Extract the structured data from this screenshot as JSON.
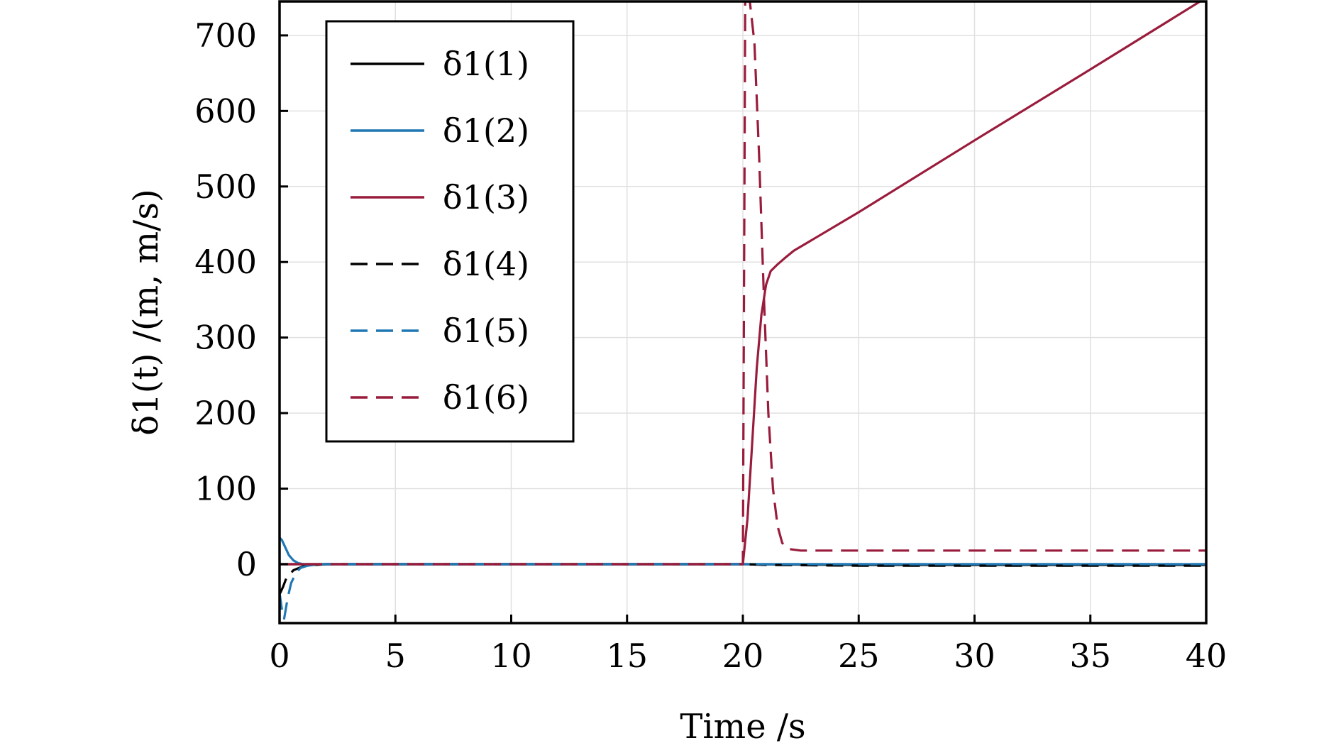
{
  "chart_data": {
    "type": "line",
    "xlabel": "Time /s",
    "ylabel": "δ1(t) /(m, m/s)",
    "xlim": [
      0,
      40
    ],
    "ylim": [
      -78,
      745
    ],
    "xticks": [
      0,
      5,
      10,
      15,
      20,
      25,
      30,
      35,
      40
    ],
    "yticks": [
      0,
      100,
      200,
      300,
      400,
      500,
      600,
      700
    ],
    "grid": true,
    "legend_position": "top-left",
    "series": [
      {
        "name": "δ1(1)",
        "color": "#000000",
        "dash": "solid",
        "x": [
          0,
          0.2,
          0.5,
          1,
          2,
          10,
          20,
          25,
          30,
          35,
          40
        ],
        "y": [
          0,
          0,
          0,
          0,
          0,
          0,
          0,
          -1,
          -1,
          -1,
          -1
        ]
      },
      {
        "name": "δ1(2)",
        "color": "#1f77b4",
        "dash": "solid",
        "x": [
          0,
          0.1,
          0.25,
          0.4,
          0.6,
          0.8,
          1.1,
          1.5,
          2,
          10,
          20,
          25,
          30,
          40
        ],
        "y": [
          35,
          32,
          22,
          12,
          5,
          1.5,
          -0.5,
          -1,
          0,
          0,
          0,
          0,
          0,
          0
        ]
      },
      {
        "name": "δ1(3)",
        "color": "#9a1c3c",
        "dash": "solid",
        "x": [
          0,
          10,
          19.95,
          20,
          20.2,
          20.4,
          20.6,
          20.8,
          21,
          21.2,
          21.5,
          21.8,
          22.2,
          25,
          30,
          35,
          40
        ],
        "y": [
          0,
          0,
          0,
          0,
          60,
          160,
          260,
          330,
          370,
          388,
          397,
          405,
          415,
          466,
          561,
          655,
          750
        ]
      },
      {
        "name": "δ1(4)",
        "color": "#000000",
        "dash": "dashed",
        "x": [
          0,
          0.15,
          0.3,
          0.6,
          1,
          1.5,
          2,
          10,
          20,
          21,
          25,
          30,
          35,
          40
        ],
        "y": [
          -40,
          -30,
          -18,
          -8,
          -3,
          -1,
          0,
          0,
          0,
          -1,
          -2,
          -2,
          -2,
          -2
        ]
      },
      {
        "name": "δ1(5)",
        "color": "#1f77b4",
        "dash": "dashed",
        "x": [
          0,
          0.1,
          0.2,
          0.35,
          0.5,
          0.7,
          0.9,
          1.2,
          1.6,
          2,
          10,
          20,
          25,
          30,
          40
        ],
        "y": [
          -38,
          -60,
          -72,
          -45,
          -25,
          -12,
          -5,
          -2,
          -0.5,
          0,
          0,
          0,
          0,
          0,
          0
        ]
      },
      {
        "name": "δ1(6)",
        "color": "#9a1c3c",
        "dash": "dashed",
        "x": [
          0,
          10,
          19.9,
          20,
          20.1,
          20.3,
          20.5,
          20.7,
          20.9,
          21.1,
          21.3,
          21.5,
          21.7,
          22,
          22.5,
          25,
          30,
          35,
          40
        ],
        "y": [
          0,
          0,
          0,
          0,
          745,
          745,
          690,
          540,
          360,
          200,
          100,
          50,
          28,
          20,
          18,
          18,
          18,
          18,
          18
        ]
      }
    ]
  }
}
